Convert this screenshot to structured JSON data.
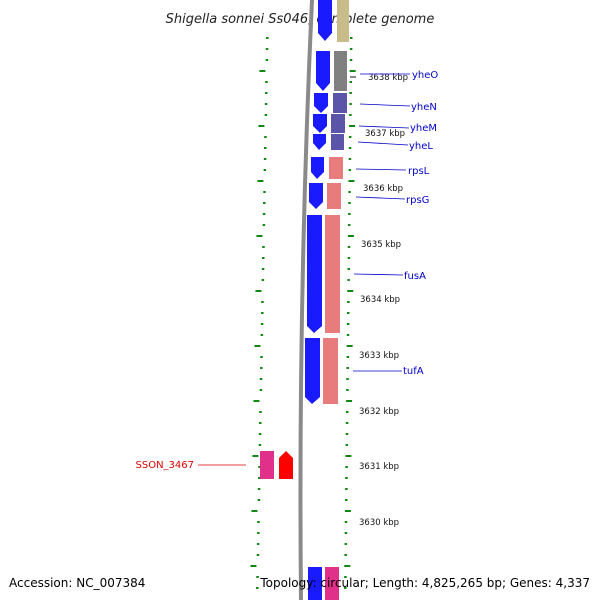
{
  "title": "Shigella sonnei Ss046, complete genome",
  "footer": {
    "accession": "Accession: NC_007384",
    "topology": "Topology: circular; Length: 4,825,265 bp; Genes: 4,337"
  },
  "colors": {
    "forward_gene": "#1a1aff",
    "reverse_highlight": "#ff0000",
    "highlight_label": "#dd0000",
    "label": "#0000cc",
    "tick_green": "#118811",
    "backbone": "#8a8a8a",
    "rrna_pink": "#e87c7c",
    "purple": "#5a55a8",
    "grey_feature": "#808080",
    "olive": "#c8bd8a",
    "magenta": "#e0308a"
  },
  "kbp_ticks": [
    "3638 kbp",
    "3637 kbp",
    "3636 kbp",
    "3635 kbp",
    "3634 kbp",
    "3633 kbp",
    "3632 kbp",
    "3631 kbp",
    "3630 kbp"
  ],
  "genes": [
    {
      "name": "yheO",
      "highlight": false
    },
    {
      "name": "yheN",
      "highlight": false
    },
    {
      "name": "yheM",
      "highlight": false
    },
    {
      "name": "yheL",
      "highlight": false
    },
    {
      "name": "rpsL",
      "highlight": false
    },
    {
      "name": "rpsG",
      "highlight": false
    },
    {
      "name": "fusA",
      "highlight": false
    },
    {
      "name": "tufA",
      "highlight": false
    },
    {
      "name": "SSON_3467",
      "highlight": true
    }
  ]
}
